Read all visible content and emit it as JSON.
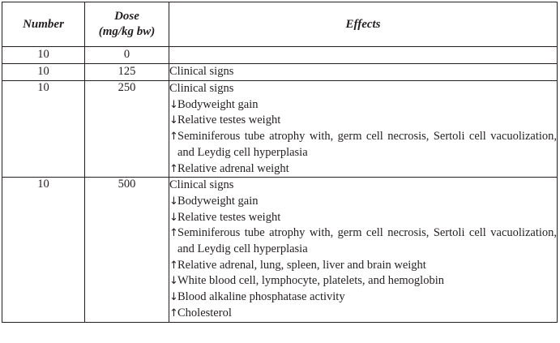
{
  "headers": {
    "number": "Number",
    "dose_line1": "Dose",
    "dose_line2": "(mg/kg bw)",
    "effects": "Effects"
  },
  "rows": [
    {
      "number": "10",
      "dose": "0",
      "effects": []
    },
    {
      "number": "10",
      "dose": "125",
      "effects": [
        {
          "arrow": "",
          "text": "Clinical signs"
        }
      ]
    },
    {
      "number": "10",
      "dose": "250",
      "effects": [
        {
          "arrow": "",
          "text": "Clinical signs"
        },
        {
          "arrow": "↓",
          "text": "Bodyweight gain"
        },
        {
          "arrow": "↓",
          "text": "Relative testes weight"
        },
        {
          "arrow": "↑",
          "text": "Seminiferous tube atrophy with, germ cell necrosis, Sertoli cell vacuolization, and Leydig cell hyperplasia"
        },
        {
          "arrow": "↑",
          "text": "Relative adrenal weight"
        }
      ]
    },
    {
      "number": "10",
      "dose": "500",
      "effects": [
        {
          "arrow": "",
          "text": "Clinical signs"
        },
        {
          "arrow": "↓",
          "text": "Bodyweight gain"
        },
        {
          "arrow": "↓",
          "text": "Relative testes weight"
        },
        {
          "arrow": "↑",
          "text": "Seminiferous tube atrophy with, germ cell necrosis, Sertoli cell vacuolization, and Leydig cell hyperplasia"
        },
        {
          "arrow": "↑",
          "text": "Relative adrenal, lung, spleen, liver and brain weight"
        },
        {
          "arrow": "↓",
          "text": "White blood cell, lymphocyte, platelets, and hemoglobin"
        },
        {
          "arrow": "↓",
          "text": "Blood alkaline phosphatase activity"
        },
        {
          "arrow": "↑",
          "text": "Cholesterol"
        }
      ]
    }
  ]
}
